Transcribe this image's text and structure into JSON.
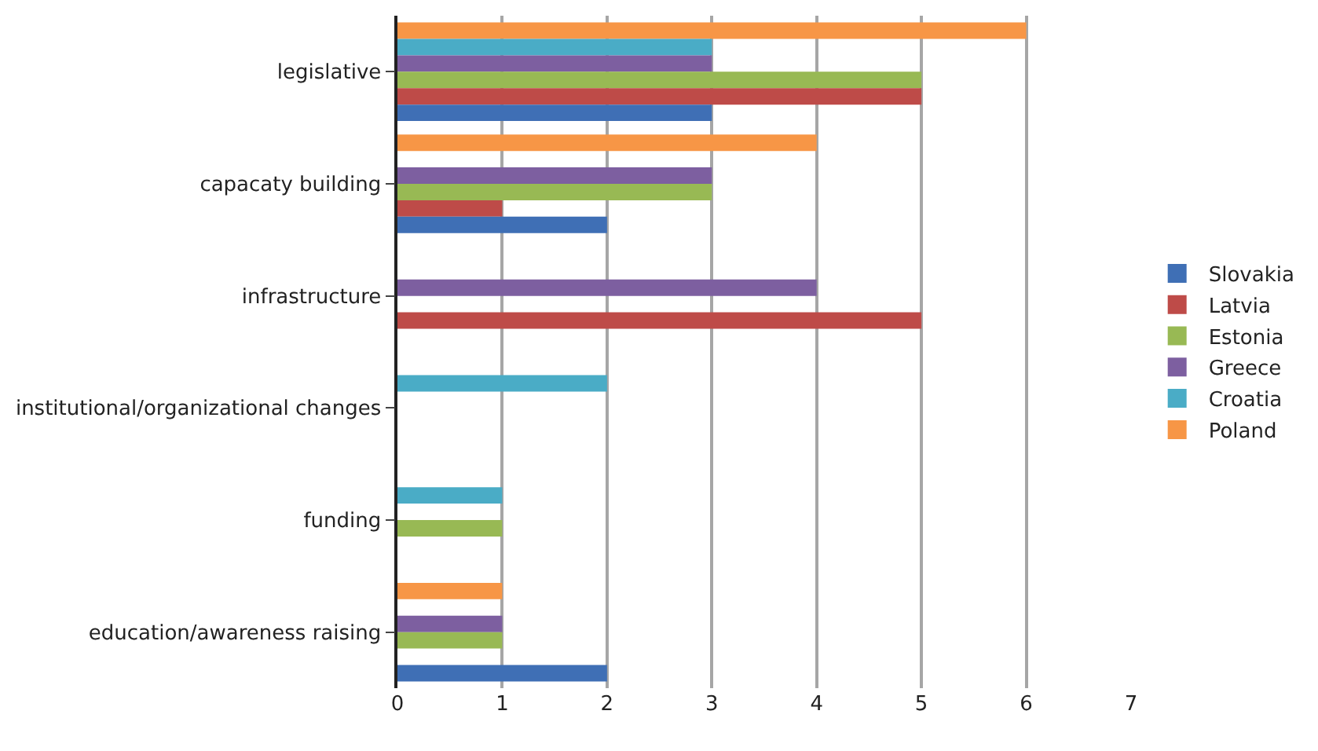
{
  "chart_data": {
    "type": "bar",
    "orientation": "horizontal",
    "categories": [
      "legislative",
      "capacaty building",
      "infrastructure",
      "institutional/organizational changes",
      "funding",
      "education/awareness raising"
    ],
    "series": [
      {
        "name": "Slovakia",
        "color": "#3f6fb5",
        "values": [
          3,
          2,
          null,
          null,
          null,
          2
        ]
      },
      {
        "name": "Latvia",
        "color": "#be4b48",
        "values": [
          5,
          1,
          5,
          null,
          null,
          null
        ]
      },
      {
        "name": "Estonia",
        "color": "#98b954",
        "values": [
          5,
          3,
          null,
          null,
          1,
          1
        ]
      },
      {
        "name": "Greece",
        "color": "#7d5fa0",
        "values": [
          3,
          3,
          4,
          null,
          null,
          1
        ]
      },
      {
        "name": "Croatia",
        "color": "#4aacc6",
        "values": [
          3,
          null,
          null,
          2,
          1,
          null
        ]
      },
      {
        "name": "Poland",
        "color": "#f79646",
        "values": [
          6,
          4,
          null,
          null,
          null,
          1
        ]
      }
    ],
    "xlim": [
      0,
      7
    ],
    "xticks": [
      0,
      1,
      2,
      3,
      4,
      5,
      6,
      7
    ],
    "grid": "x",
    "legend": "right"
  }
}
